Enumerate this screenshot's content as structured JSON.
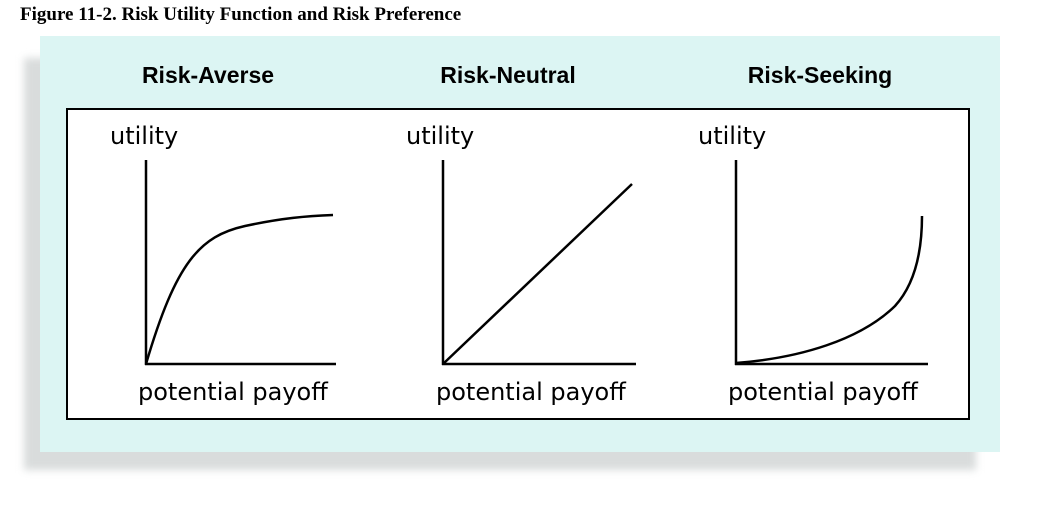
{
  "figure": {
    "caption": "Figure 11-2. Risk Utility Function and Risk Preference"
  },
  "colors": {
    "panel_background": "#dcf5f3",
    "frame_border": "#000000",
    "curve": "#000000"
  },
  "panels": [
    {
      "title": "Risk-Averse",
      "y_label": "utility",
      "x_label": "potential payoff",
      "curve_shape": "concave"
    },
    {
      "title": "Risk-Neutral",
      "y_label": "utility",
      "x_label": "potential payoff",
      "curve_shape": "linear"
    },
    {
      "title": "Risk-Seeking",
      "y_label": "utility",
      "x_label": "potential payoff",
      "curve_shape": "convex"
    }
  ]
}
